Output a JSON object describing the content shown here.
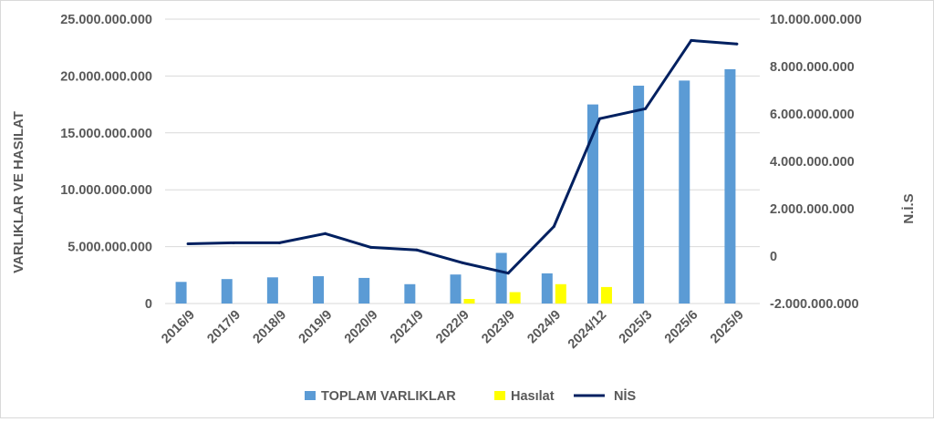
{
  "chart_data": {
    "type": "bar",
    "categories": [
      "2016/9",
      "2017/9",
      "2018/9",
      "2019/9",
      "2020/9",
      "2021/9",
      "2022/9",
      "2023/9",
      "2024/9",
      "2024/12",
      "2025/3",
      "2025/6",
      "2025/9"
    ],
    "series": [
      {
        "name": "TOPLAM VARLIKLAR",
        "type": "bar",
        "axis": "left",
        "color": "#5b9bd5",
        "values": [
          1900000000,
          2150000000,
          2300000000,
          2400000000,
          2250000000,
          1700000000,
          2550000000,
          4450000000,
          2650000000,
          17500000000,
          19150000000,
          19600000000,
          20600000000
        ]
      },
      {
        "name": "Hasılat",
        "type": "bar",
        "axis": "left",
        "color": "#ffff00",
        "values": [
          0,
          0,
          0,
          0,
          0,
          0,
          400000000,
          1000000000,
          1700000000,
          1450000000,
          0,
          0,
          0
        ]
      },
      {
        "name": "NİS",
        "type": "line",
        "axis": "right",
        "color": "#002060",
        "values": [
          520000000,
          560000000,
          560000000,
          950000000,
          370000000,
          260000000,
          -280000000,
          -720000000,
          1250000000,
          5800000000,
          6220000000,
          9100000000,
          8950000000
        ]
      }
    ],
    "ylabel": "VARLIKLAR VE HASILAT",
    "y2label": "N.İ.S",
    "ylim": [
      0,
      25000000000
    ],
    "y2lim": [
      -2000000000,
      10000000000
    ],
    "yticks": [
      "0",
      "5.000.000.000",
      "10.000.000.000",
      "15.000.000.000",
      "20.000.000.000",
      "25.000.000.000"
    ],
    "y2ticks": [
      "-2.000.000.000",
      "0",
      "2.000.000.000",
      "4.000.000.000",
      "6.000.000.000",
      "8.000.000.000",
      "10.000.000.000"
    ],
    "grid": true,
    "legend": "bottom"
  }
}
